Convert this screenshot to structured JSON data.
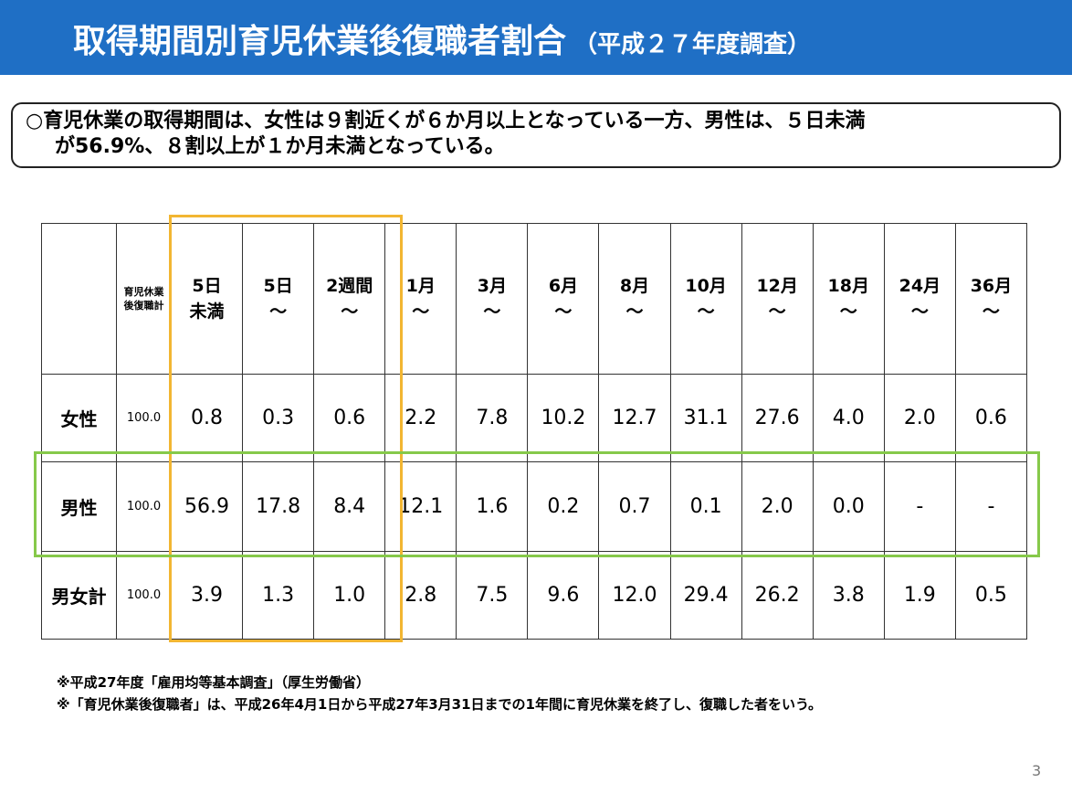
{
  "header": {
    "title": "取得期間別育児休業後復職者割合",
    "subtitle": "（平成２７年度調査）"
  },
  "summary": {
    "lines": [
      "○育児休業の取得期間は、女性は９割近くが６か月以上となっている一方、男性は、５日未満",
      "が56.9%、８割以上が１か月未満となっている。"
    ]
  },
  "table": {
    "header": [
      [
        "育児休業後復職計"
      ],
      [
        "5日",
        "未満"
      ],
      [
        "5日",
        "〜"
      ],
      [
        "2週間",
        "〜"
      ],
      [
        "1月",
        "〜"
      ],
      [
        "3月",
        "〜"
      ],
      [
        "6月",
        "〜"
      ],
      [
        "8月",
        "〜"
      ],
      [
        "10月",
        "〜"
      ],
      [
        "12月",
        "〜"
      ],
      [
        "18月",
        "〜"
      ],
      [
        "24月",
        "〜"
      ],
      [
        "36月",
        "〜"
      ]
    ],
    "rows": [
      [
        "女性",
        "100.0",
        "0.8",
        "0.3",
        "0.6",
        "2.2",
        "7.8",
        "10.2",
        "12.7",
        "31.1",
        "27.6",
        "4.0",
        "2.0",
        "0.6"
      ],
      [
        "男性",
        "100.0",
        "56.9",
        "17.8",
        "8.4",
        "12.1",
        "1.6",
        "0.2",
        "0.7",
        "0.1",
        "2.0",
        "0.0",
        "-",
        "-"
      ],
      [
        "男女計",
        "100.0",
        "3.9",
        "1.3",
        "1.0",
        "2.8",
        "7.5",
        "9.6",
        "12.0",
        "29.4",
        "26.2",
        "3.8",
        "1.9",
        "0.5"
      ]
    ]
  },
  "footnotes": [
    "※平成27年度「雇用均等基本調査」（厚生労働省）",
    "※「育児休業後復職者」は、平成26年4月1日から平成27年3月31日までの1年間に育児休業を終了し、復職した者をいう。"
  ],
  "page_number": "3"
}
